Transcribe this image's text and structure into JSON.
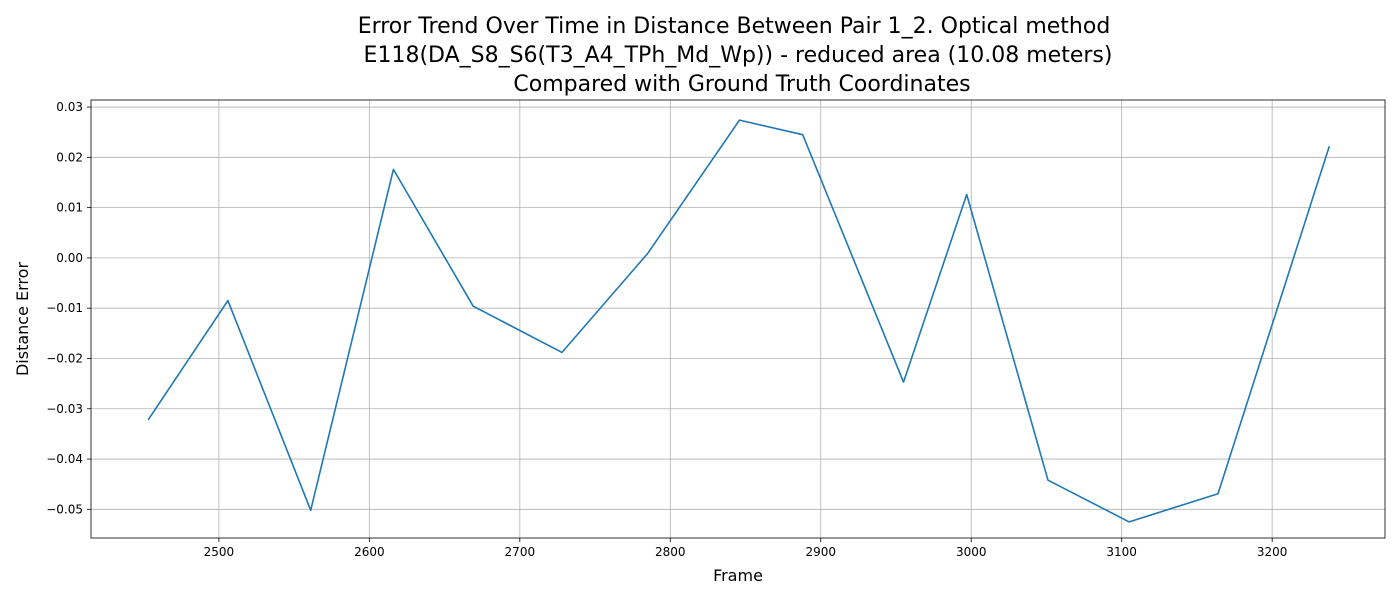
{
  "chart_data": {
    "type": "line",
    "title": [
      "Error Trend Over Time in Distance Between Pair 1_2. Optical method",
      "E118(DA_S8_S6(T3_A4_TPh_Md_Wp)) - reduced area (10.08 meters)",
      "Compared with Ground Truth Coordinates"
    ],
    "xlabel": "Frame",
    "ylabel": "Distance Error",
    "xlim": [
      2415,
      3275
    ],
    "ylim": [
      -0.0557,
      0.0314
    ],
    "grid": true,
    "x_ticks": [
      2500,
      2600,
      2700,
      2800,
      2900,
      3000,
      3100,
      3200
    ],
    "x_tick_labels": [
      "2500",
      "2600",
      "2700",
      "2800",
      "2900",
      "3000",
      "3100",
      "3200"
    ],
    "y_ticks": [
      0.03,
      0.02,
      0.01,
      0.0,
      -0.01,
      -0.02,
      -0.03,
      -0.04,
      -0.05
    ],
    "y_tick_labels": [
      "0.03",
      "0.02",
      "0.01",
      "0.00",
      "−0.01",
      "−0.02",
      "−0.03",
      "−0.04",
      "−0.05"
    ],
    "series": [
      {
        "name": "Distance Error",
        "color": "#1f77b4",
        "x": [
          2453,
          2506,
          2561,
          2616,
          2669,
          2728,
          2785,
          2846,
          2888,
          2955,
          2997,
          3051,
          3105,
          3164,
          3238
        ],
        "y": [
          -0.0322,
          -0.0085,
          -0.0502,
          0.0176,
          -0.0096,
          -0.0188,
          0.0009,
          0.0274,
          0.0245,
          -0.0247,
          0.0126,
          -0.0442,
          -0.0525,
          -0.0469,
          0.0222
        ]
      }
    ]
  }
}
